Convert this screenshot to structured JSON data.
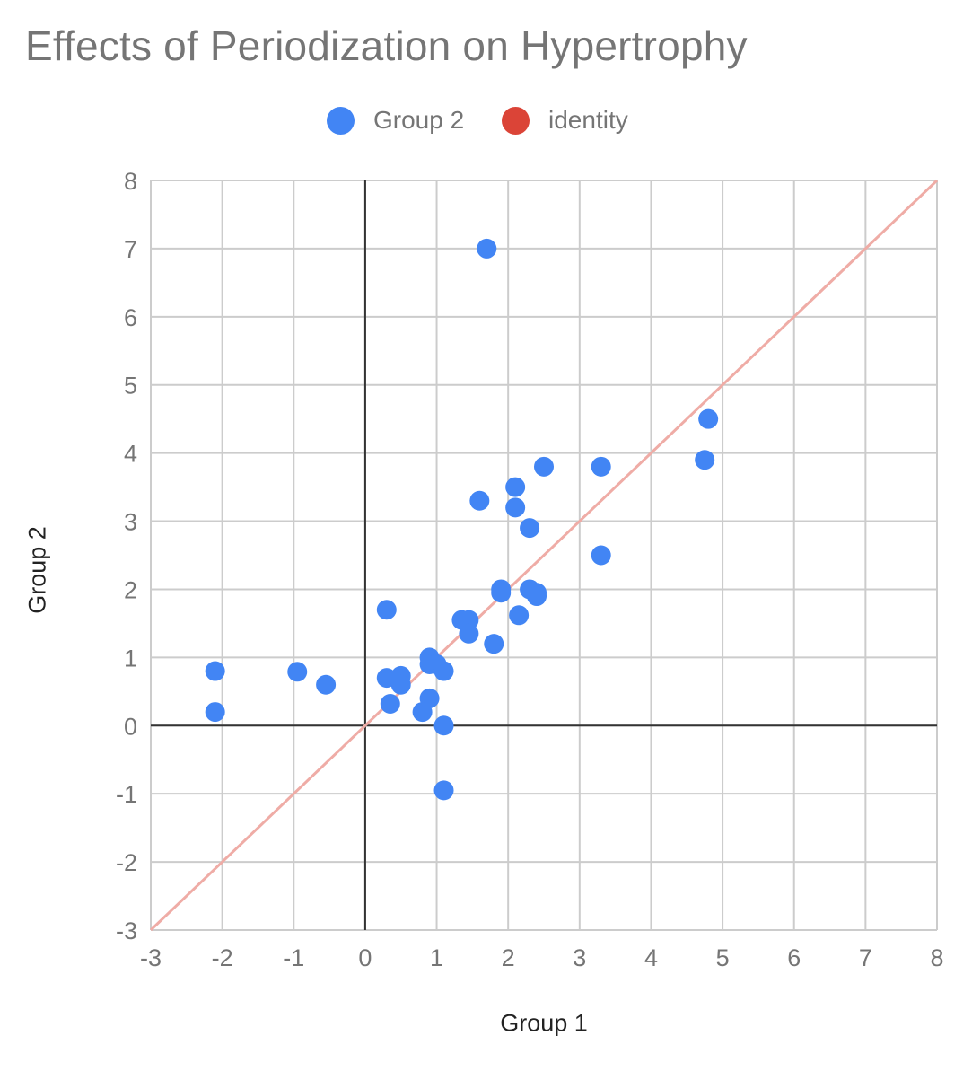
{
  "chart_data": {
    "type": "scatter",
    "title": "Effects of Periodization on Hypertrophy",
    "xlabel": "Group 1",
    "ylabel": "Group 2",
    "xlim": [
      -3,
      8
    ],
    "ylim": [
      -3,
      8
    ],
    "x_ticks": [
      -3,
      -2,
      -1,
      0,
      1,
      2,
      3,
      4,
      5,
      6,
      7,
      8
    ],
    "y_ticks": [
      -3,
      -2,
      -1,
      0,
      1,
      2,
      3,
      4,
      5,
      6,
      7,
      8
    ],
    "grid": true,
    "legend_position": "top",
    "series": [
      {
        "name": "Group 2",
        "color": "#4285F4",
        "mark": "point",
        "points": [
          [
            1.7,
            7.0
          ],
          [
            4.8,
            4.5
          ],
          [
            4.75,
            3.9
          ],
          [
            2.5,
            3.8
          ],
          [
            3.3,
            3.8
          ],
          [
            2.1,
            3.5
          ],
          [
            1.6,
            3.3
          ],
          [
            2.1,
            3.2
          ],
          [
            2.3,
            2.9
          ],
          [
            3.3,
            2.5
          ],
          [
            1.9,
            2.0
          ],
          [
            1.9,
            1.95
          ],
          [
            2.3,
            2.0
          ],
          [
            2.4,
            1.95
          ],
          [
            2.4,
            1.9
          ],
          [
            2.15,
            1.62
          ],
          [
            0.3,
            1.7
          ],
          [
            1.35,
            1.55
          ],
          [
            1.45,
            1.55
          ],
          [
            1.45,
            1.35
          ],
          [
            1.8,
            1.2
          ],
          [
            0.9,
            1.0
          ],
          [
            0.9,
            0.9
          ],
          [
            1.0,
            0.9
          ],
          [
            1.1,
            0.8
          ],
          [
            0.3,
            0.7
          ],
          [
            0.5,
            0.73
          ],
          [
            0.5,
            0.6
          ],
          [
            0.9,
            0.4
          ],
          [
            0.35,
            0.32
          ],
          [
            0.8,
            0.2
          ],
          [
            1.1,
            0.0
          ],
          [
            1.1,
            -0.95
          ],
          [
            -2.1,
            0.8
          ],
          [
            -2.1,
            0.2
          ],
          [
            -0.95,
            0.79
          ],
          [
            -0.55,
            0.6
          ]
        ]
      },
      {
        "name": "identity",
        "color": "#DB4437",
        "line_color": "#EFACA6",
        "mark": "line",
        "points": [
          [
            -3,
            -3
          ],
          [
            8,
            8
          ]
        ]
      }
    ]
  }
}
